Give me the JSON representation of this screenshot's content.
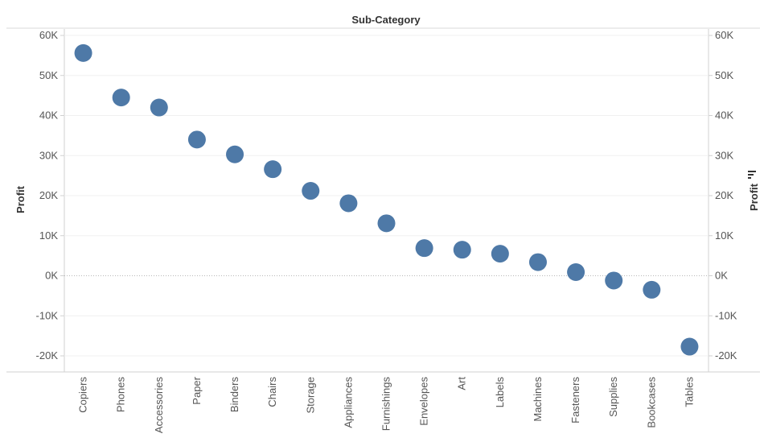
{
  "chart_data": {
    "type": "scatter",
    "title": "Sub-Category",
    "xlabel": "",
    "ylabel": "Profit",
    "ylabel_right": "Profit",
    "sort_icon": "sort-descending-icon",
    "categories": [
      "Copiers",
      "Phones",
      "Accessories",
      "Paper",
      "Binders",
      "Chairs",
      "Storage",
      "Appliances",
      "Furnishings",
      "Envelopes",
      "Art",
      "Labels",
      "Machines",
      "Fasteners",
      "Supplies",
      "Bookcases",
      "Tables"
    ],
    "values": [
      55600,
      44500,
      42000,
      34000,
      30300,
      26600,
      21200,
      18100,
      13100,
      6900,
      6500,
      5500,
      3400,
      900,
      -1200,
      -3500,
      -17700
    ],
    "ylim": [
      -24000,
      60000
    ],
    "yticks": [
      60000,
      50000,
      40000,
      30000,
      20000,
      10000,
      0,
      -10000,
      -20000
    ],
    "ytick_labels": [
      "60K",
      "50K",
      "40K",
      "30K",
      "20K",
      "10K",
      "0K",
      "-10K",
      "-20K"
    ],
    "grid": true,
    "zero_line": "dotted",
    "marker_color": "#4e79a7",
    "gridline_color": "#f0f0f0"
  }
}
